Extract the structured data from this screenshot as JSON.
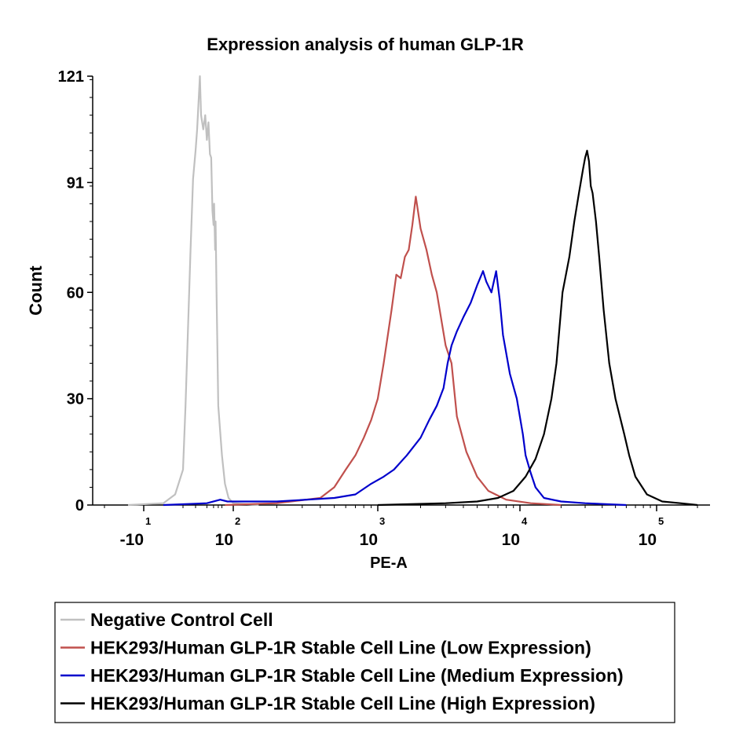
{
  "chart_data": {
    "type": "line",
    "title": "Expression analysis of human GLP-1R",
    "xlabel": "PE-A",
    "ylabel": "Count",
    "ylim": [
      0,
      121
    ],
    "y_ticks": [
      "0",
      "30",
      "60",
      "91",
      "121"
    ],
    "x_scale": "biexponential",
    "x_ticks": [
      {
        "base": "-10",
        "exp": "1"
      },
      {
        "base": "10",
        "exp": "2"
      },
      {
        "base": "10",
        "exp": "3"
      },
      {
        "base": "10",
        "exp": "4"
      },
      {
        "base": "10",
        "exp": "5"
      }
    ],
    "legend_position": "below",
    "grid": false,
    "series": [
      {
        "name": "Negative Control Cell",
        "color": "#c0c0c0",
        "points": [
          [
            -14,
            0
          ],
          [
            -5,
            0.5
          ],
          [
            -2,
            3
          ],
          [
            0,
            10
          ],
          [
            2,
            28
          ],
          [
            4,
            50
          ],
          [
            6,
            72
          ],
          [
            8,
            92
          ],
          [
            10,
            100
          ],
          [
            11,
            106
          ],
          [
            13,
            121
          ],
          [
            14,
            110
          ],
          [
            16,
            106
          ],
          [
            18,
            110
          ],
          [
            20,
            103
          ],
          [
            22,
            108
          ],
          [
            24,
            99
          ],
          [
            26,
            98
          ],
          [
            28,
            83
          ],
          [
            30,
            79
          ],
          [
            31,
            85
          ],
          [
            33,
            72
          ],
          [
            34,
            80
          ],
          [
            36,
            60
          ],
          [
            40,
            28
          ],
          [
            50,
            14
          ],
          [
            60,
            6
          ],
          [
            75,
            2
          ],
          [
            100,
            0.5
          ],
          [
            150,
            0
          ]
        ]
      },
      {
        "name": "HEK293/Human GLP-1R Stable Cell Line (Low Expression)",
        "color": "#c0504d",
        "points": [
          [
            60,
            0
          ],
          [
            200,
            0.5
          ],
          [
            400,
            2
          ],
          [
            500,
            5
          ],
          [
            600,
            10
          ],
          [
            700,
            14
          ],
          [
            800,
            19
          ],
          [
            900,
            24
          ],
          [
            1000,
            30
          ],
          [
            1100,
            40
          ],
          [
            1250,
            55
          ],
          [
            1350,
            65
          ],
          [
            1450,
            64
          ],
          [
            1550,
            70
          ],
          [
            1650,
            72
          ],
          [
            1750,
            79
          ],
          [
            1850,
            87
          ],
          [
            2000,
            78
          ],
          [
            2200,
            72
          ],
          [
            2400,
            65
          ],
          [
            2600,
            60
          ],
          [
            3000,
            45
          ],
          [
            3300,
            40
          ],
          [
            3600,
            25
          ],
          [
            4200,
            15
          ],
          [
            5000,
            8
          ],
          [
            6000,
            4
          ],
          [
            8000,
            1.5
          ],
          [
            12000,
            0.5
          ],
          [
            20000,
            0
          ]
        ]
      },
      {
        "name": "HEK293/Human GLP-1R Stable Cell Line (Medium Expression)",
        "color": "#0000cc",
        "points": [
          [
            -5,
            0
          ],
          [
            20,
            0.5
          ],
          [
            45,
            1.5
          ],
          [
            70,
            1
          ],
          [
            200,
            1
          ],
          [
            500,
            2
          ],
          [
            700,
            3
          ],
          [
            900,
            6
          ],
          [
            1100,
            8
          ],
          [
            1300,
            10
          ],
          [
            1600,
            14
          ],
          [
            2000,
            19
          ],
          [
            2300,
            24
          ],
          [
            2600,
            28
          ],
          [
            2900,
            33
          ],
          [
            3100,
            40
          ],
          [
            3300,
            45
          ],
          [
            3600,
            49
          ],
          [
            4000,
            53
          ],
          [
            4500,
            57
          ],
          [
            5000,
            62
          ],
          [
            5500,
            66
          ],
          [
            5800,
            63
          ],
          [
            6300,
            60
          ],
          [
            6800,
            66
          ],
          [
            7200,
            58
          ],
          [
            7600,
            48
          ],
          [
            8500,
            37
          ],
          [
            9500,
            30
          ],
          [
            10500,
            20
          ],
          [
            11000,
            14
          ],
          [
            12000,
            9
          ],
          [
            13000,
            5
          ],
          [
            15000,
            2
          ],
          [
            20000,
            1
          ],
          [
            30000,
            0.5
          ],
          [
            60000,
            0
          ]
        ]
      },
      {
        "name": "HEK293/Human GLP-1R Stable Cell Line (High Expression)",
        "color": "#000000",
        "points": [
          [
            1000,
            0
          ],
          [
            3000,
            0.5
          ],
          [
            5000,
            1
          ],
          [
            7000,
            2
          ],
          [
            9000,
            4
          ],
          [
            11000,
            8
          ],
          [
            13000,
            13
          ],
          [
            15000,
            20
          ],
          [
            17000,
            30
          ],
          [
            18500,
            40
          ],
          [
            20500,
            60
          ],
          [
            23000,
            70
          ],
          [
            25000,
            80
          ],
          [
            27000,
            88
          ],
          [
            29000,
            95
          ],
          [
            30000,
            98
          ],
          [
            31000,
            100
          ],
          [
            32000,
            97
          ],
          [
            33000,
            90
          ],
          [
            34000,
            88
          ],
          [
            36000,
            80
          ],
          [
            38000,
            70
          ],
          [
            41000,
            55
          ],
          [
            45000,
            40
          ],
          [
            50000,
            30
          ],
          [
            58000,
            20
          ],
          [
            63000,
            14
          ],
          [
            70000,
            8
          ],
          [
            85000,
            3
          ],
          [
            110000,
            1
          ],
          [
            150000,
            0.5
          ],
          [
            250000,
            0
          ]
        ]
      }
    ]
  }
}
